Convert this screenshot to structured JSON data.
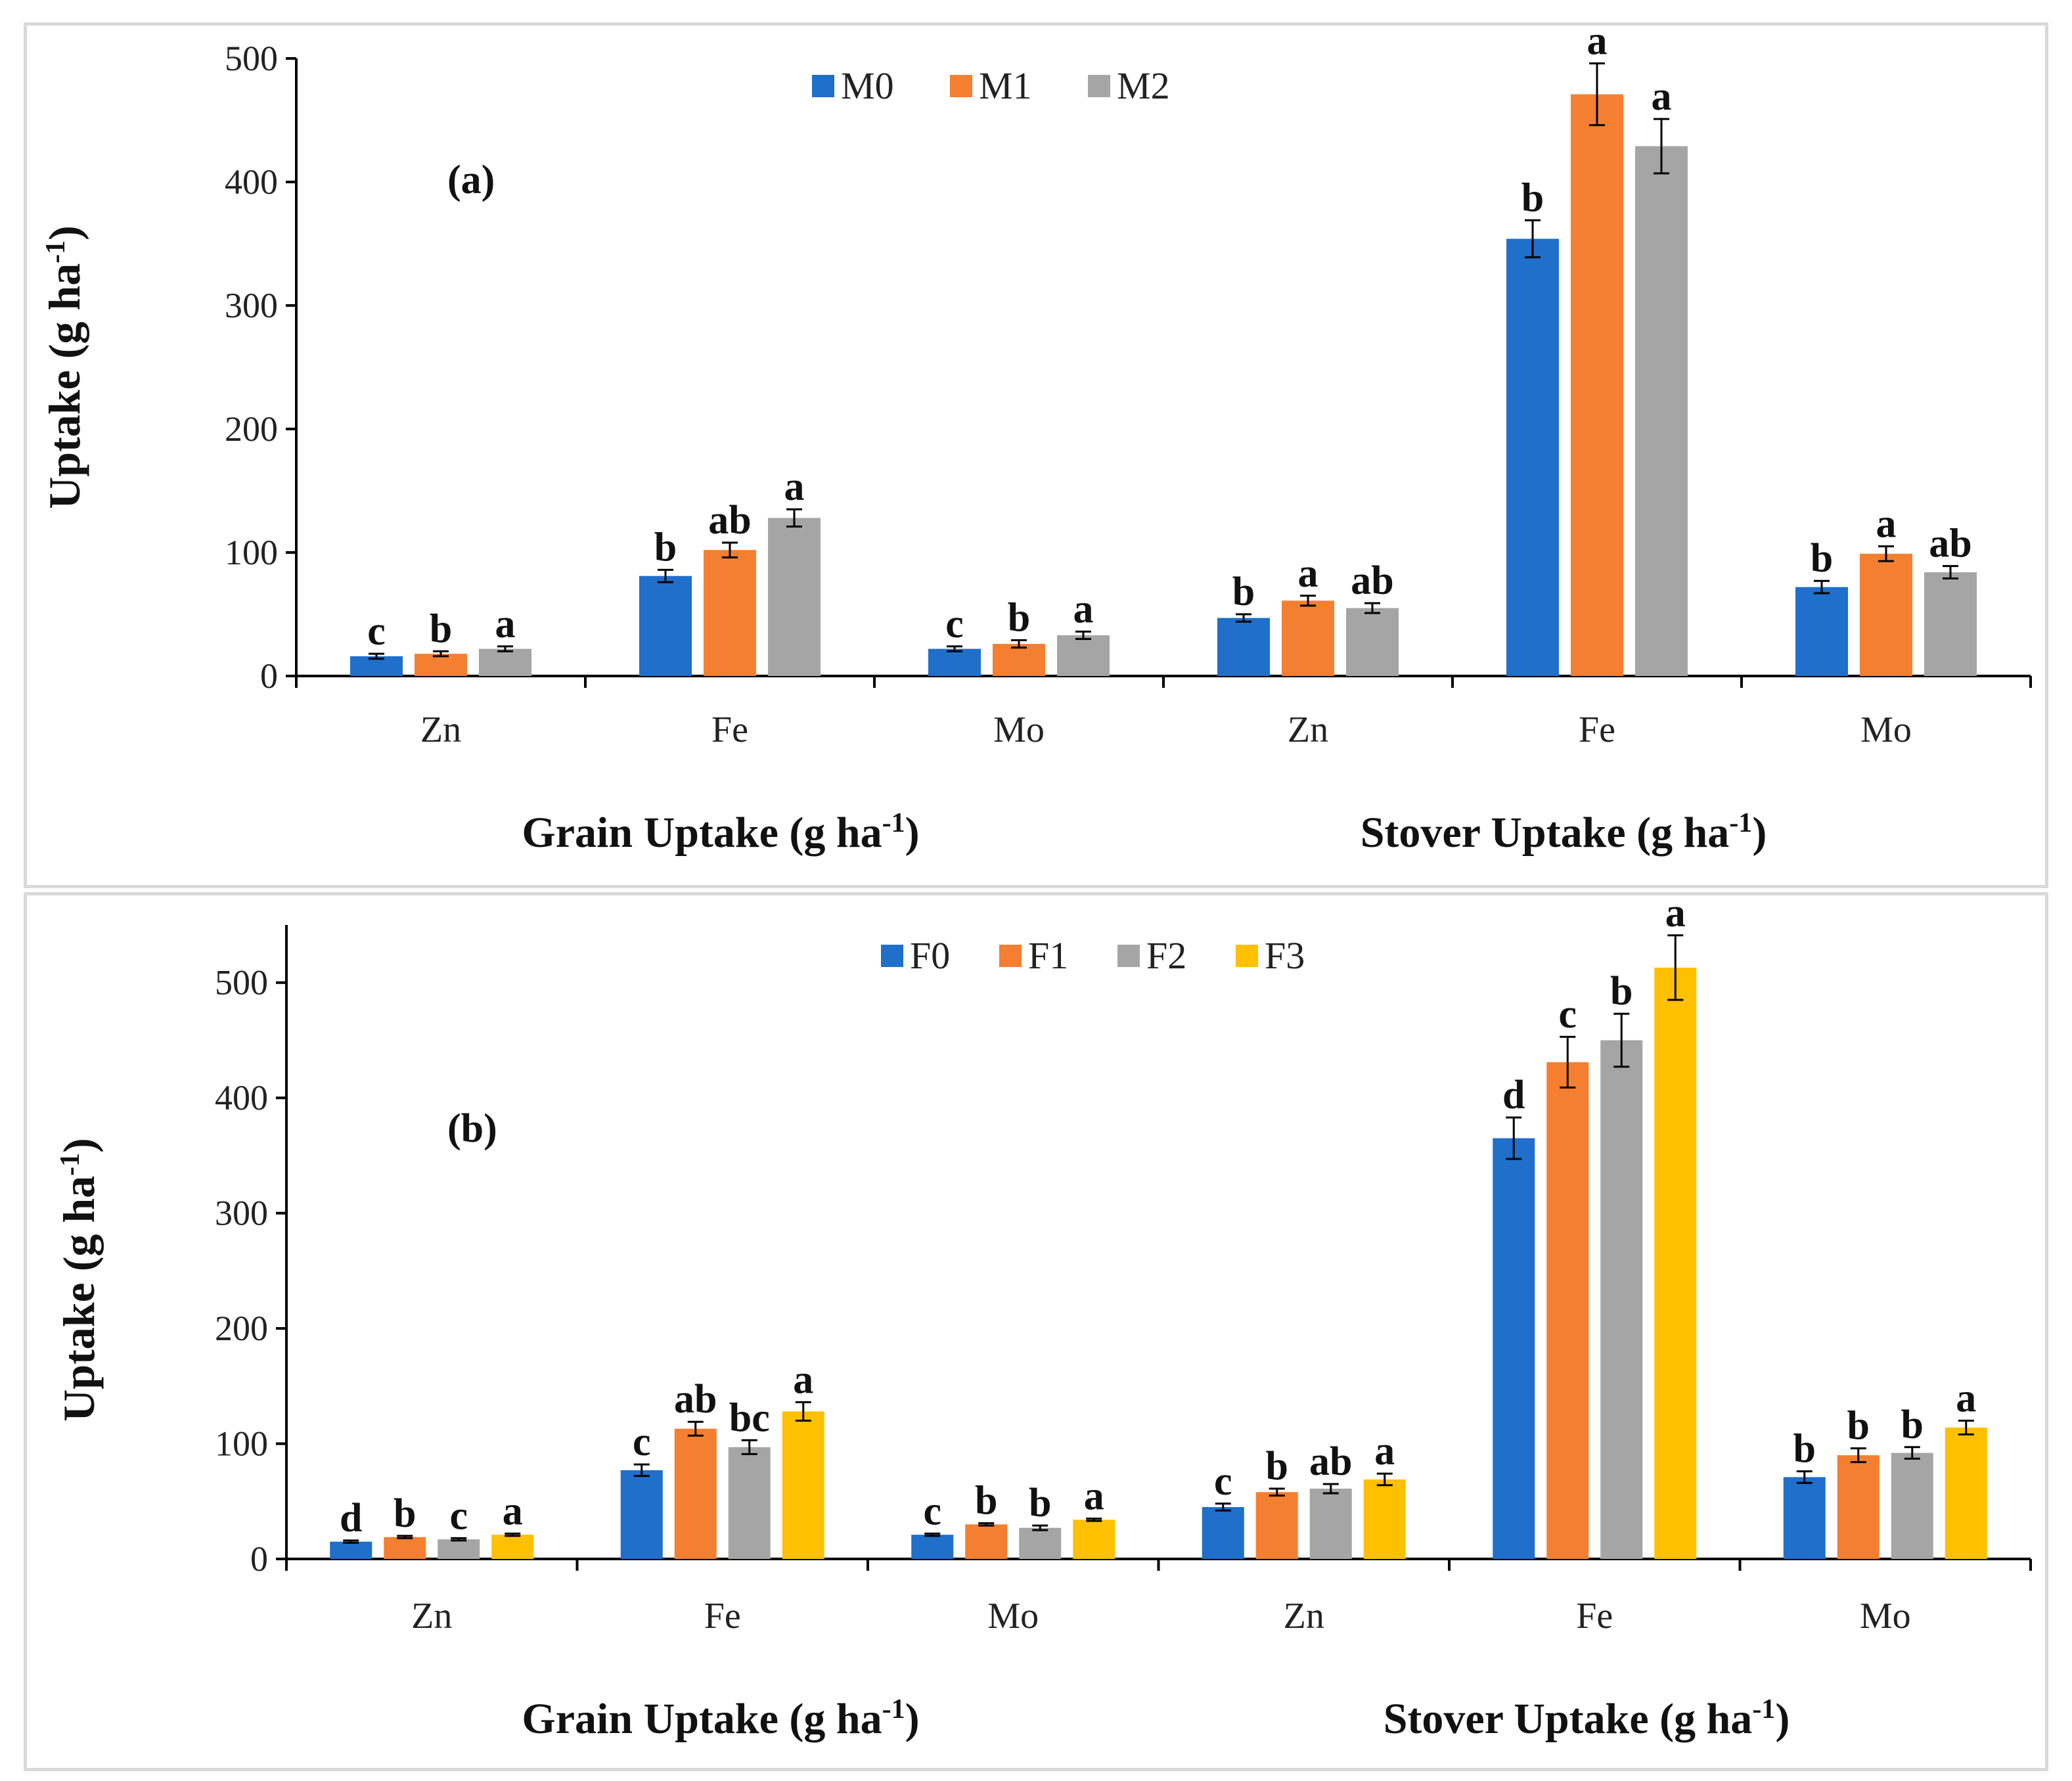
{
  "chart_data": [
    {
      "type": "bar",
      "panel_tag": "(a)",
      "ylabel": "Uptake (g ha",
      "ylabel_sup": "-1",
      "ylabel_end": ")",
      "ylim": [
        0,
        500
      ],
      "yticks": [
        0,
        100,
        200,
        300,
        400,
        500
      ],
      "categories": [
        "Zn",
        "Fe",
        "Mo",
        "Zn",
        "Fe",
        "Mo"
      ],
      "groups": [
        {
          "label": "Grain Uptake (g ha",
          "sup": "-1",
          "end": ")"
        },
        {
          "label": "Stover Uptake (g ha",
          "sup": "-1",
          "end": ")"
        }
      ],
      "legend_position": "top-center",
      "series": [
        {
          "name": "M0",
          "color": "#1f6fcb",
          "values": [
            16,
            81,
            22,
            47,
            354,
            72
          ],
          "errors": [
            2,
            5,
            2,
            3,
            15,
            5
          ],
          "letters": [
            "c",
            "b",
            "c",
            "b",
            "b",
            "b"
          ]
        },
        {
          "name": "M1",
          "color": "#f57f30",
          "values": [
            18,
            102,
            26,
            61,
            471,
            99
          ],
          "errors": [
            2,
            6,
            3,
            4,
            25,
            6
          ],
          "letters": [
            "b",
            "ab",
            "b",
            "a",
            "a",
            "a"
          ]
        },
        {
          "name": "M2",
          "color": "#a5a5a5",
          "values": [
            22,
            128,
            33,
            55,
            429,
            84
          ],
          "errors": [
            2,
            7,
            3,
            4,
            22,
            5
          ],
          "letters": [
            "a",
            "a",
            "a",
            "ab",
            "a",
            "ab"
          ]
        }
      ]
    },
    {
      "type": "bar",
      "panel_tag": "(b)",
      "ylabel": "Uptake (g ha",
      "ylabel_sup": "-1",
      "ylabel_end": ")",
      "ylim": [
        0,
        550
      ],
      "yticks": [
        0,
        100,
        200,
        300,
        400,
        500
      ],
      "categories": [
        "Zn",
        "Fe",
        "Mo",
        "Zn",
        "Fe",
        "Mo"
      ],
      "groups": [
        {
          "label": "Grain Uptake (g ha",
          "sup": "-1",
          "end": ")"
        },
        {
          "label": "Stover Uptake (g ha",
          "sup": "-1",
          "end": ")"
        }
      ],
      "legend_position": "top-center",
      "series": [
        {
          "name": "F0",
          "color": "#1f6fcb",
          "values": [
            15,
            77,
            21,
            45,
            365,
            71
          ],
          "errors": [
            1,
            5,
            1,
            3,
            18,
            5
          ],
          "letters": [
            "d",
            "c",
            "c",
            "c",
            "d",
            "b"
          ]
        },
        {
          "name": "F1",
          "color": "#f57f30",
          "values": [
            19,
            113,
            30,
            58,
            431,
            90
          ],
          "errors": [
            1,
            6,
            1,
            3,
            22,
            6
          ],
          "letters": [
            "b",
            "ab",
            "b",
            "b",
            "c",
            "b"
          ]
        },
        {
          "name": "F2",
          "color": "#a5a5a5",
          "values": [
            17,
            97,
            27,
            61,
            450,
            92
          ],
          "errors": [
            1,
            6,
            2,
            4,
            23,
            5
          ],
          "letters": [
            "c",
            "bc",
            "b",
            "ab",
            "b",
            "b"
          ]
        },
        {
          "name": "F3",
          "color": "#ffc000",
          "values": [
            21,
            128,
            34,
            69,
            513,
            114
          ],
          "errors": [
            1,
            8,
            1,
            5,
            28,
            6
          ],
          "letters": [
            "a",
            "a",
            "a",
            "a",
            "a",
            "a"
          ]
        }
      ]
    }
  ]
}
